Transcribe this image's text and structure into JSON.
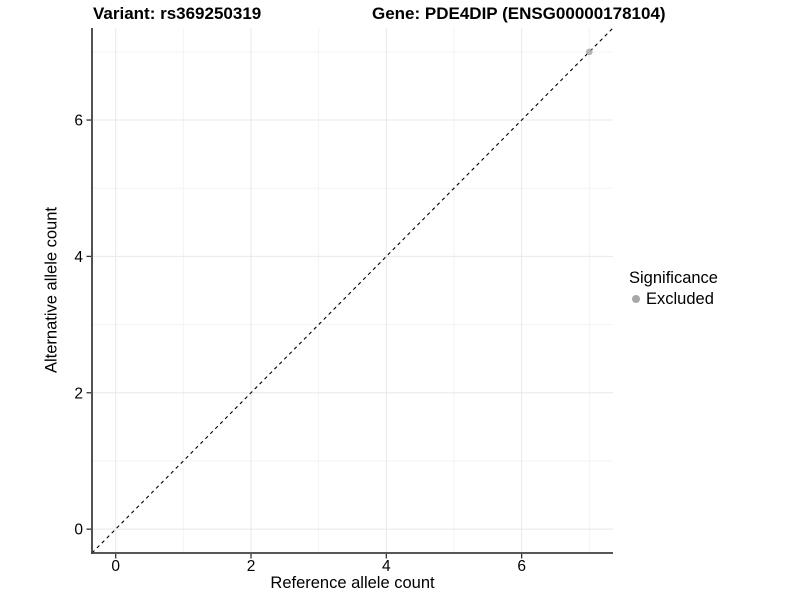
{
  "figure": {
    "title_left": "Variant: rs369250319",
    "title_right": "Gene: PDE4DIP (ENSG00000178104)"
  },
  "chart_data": {
    "type": "scatter",
    "title": "Variant: rs369250319    Gene: PDE4DIP (ENSG00000178104)",
    "xlabel": "Reference allele count",
    "ylabel": "Alternative allele count",
    "xlim": [
      -0.35,
      7.35
    ],
    "ylim": [
      -0.35,
      7.35
    ],
    "x_major_ticks": [
      0,
      2,
      4,
      6
    ],
    "y_major_ticks": [
      0,
      2,
      4,
      6
    ],
    "x_minor_ticks": [
      1,
      3,
      5,
      7
    ],
    "y_minor_ticks": [
      1,
      3,
      5,
      7
    ],
    "grid": true,
    "reference_line": {
      "kind": "identity",
      "style": "dashed",
      "color": "#000000"
    },
    "series": [
      {
        "name": "Excluded",
        "color": "#a8a8a8",
        "points": [
          {
            "x": 7,
            "y": 7
          }
        ]
      }
    ],
    "legend": {
      "title": "Significance",
      "position": "right",
      "items": [
        {
          "label": "Excluded",
          "color": "#a8a8a8"
        }
      ]
    },
    "colors": {
      "axis_line": "#3f3f3f",
      "tick_mark": "#333333",
      "grid_major": "#e8e8e8",
      "grid_minor": "#f3f3f3",
      "tick_label": "#000000"
    }
  }
}
